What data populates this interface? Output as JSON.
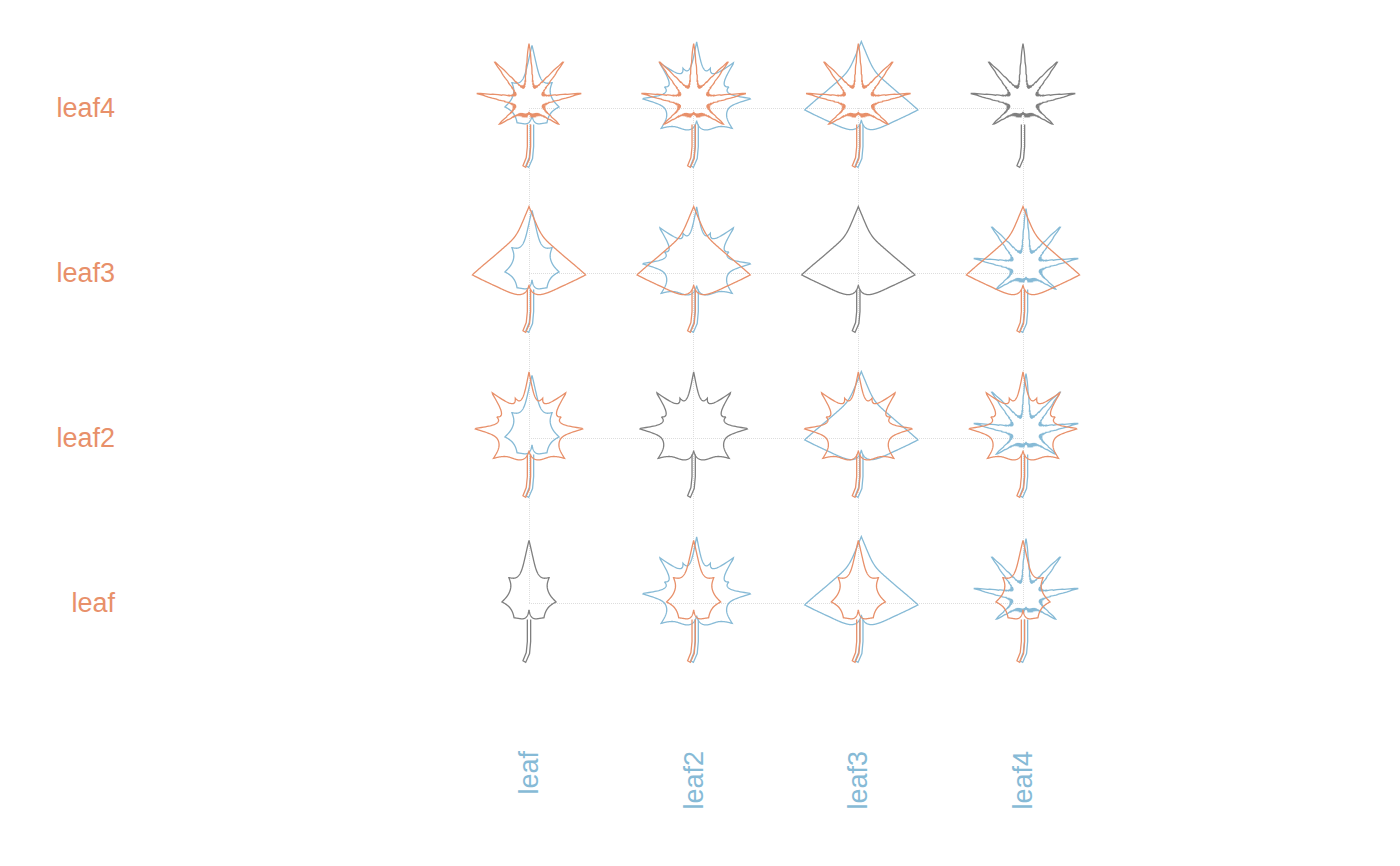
{
  "chart_data": {
    "type": "scatter",
    "x": [
      "leaf",
      "leaf2",
      "leaf3",
      "leaf4"
    ],
    "y": [
      "leaf",
      "leaf2",
      "leaf3",
      "leaf4"
    ],
    "colors": [
      "#e8906a",
      "#86bad6",
      "#7f7f7f"
    ],
    "grid": true
  }
}
